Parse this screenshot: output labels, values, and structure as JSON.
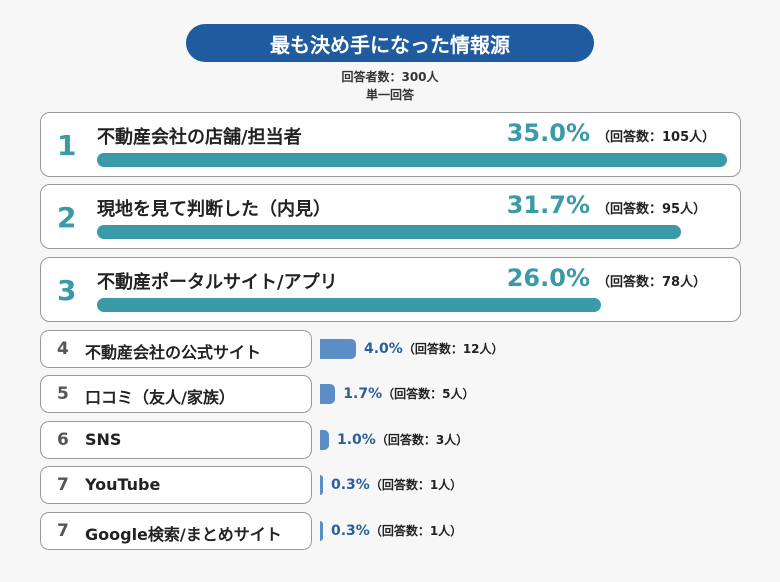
{
  "chart_data": {
    "type": "bar",
    "title": "最も決め手になった情報源",
    "subtitle": [
      "回答者数：300人",
      "単一回答"
    ],
    "items": [
      {
        "rank": "1",
        "label": "不動産会社の店舗/担当者",
        "value": 35.0,
        "pct": "35.0%",
        "count": "（回答数：105人）"
      },
      {
        "rank": "2",
        "label": "現地を見て判断した（内見）",
        "value": 31.7,
        "pct": "31.7%",
        "count": "（回答数：95人）"
      },
      {
        "rank": "3",
        "label": "不動産ポータルサイト/アプリ",
        "value": 26.0,
        "pct": "26.0%",
        "count": "（回答数：78人）"
      },
      {
        "rank": "4",
        "label": "不動産会社の公式サイト",
        "value": 4.0,
        "pct": "4.0%",
        "count": "（回答数：12人）"
      },
      {
        "rank": "5",
        "label": "口コミ（友人/家族）",
        "value": 1.7,
        "pct": "1.7%",
        "count": "（回答数：5人）"
      },
      {
        "rank": "6",
        "label": "SNS",
        "value": 1.0,
        "pct": "1.0%",
        "count": "（回答数：3人）"
      },
      {
        "rank": "7",
        "label": "YouTube",
        "value": 0.3,
        "pct": "0.3%",
        "count": "（回答数：1人）"
      },
      {
        "rank": "7",
        "label": "Google検索/まとめサイト",
        "value": 0.3,
        "pct": "0.3%",
        "count": "（回答数：1人）"
      }
    ],
    "colors": {
      "title_bg": "#1f5b9e",
      "top_bar": "#3a9aa8",
      "small_bar": "#5b8ec4",
      "small_pct": "#2a5f9a"
    }
  }
}
